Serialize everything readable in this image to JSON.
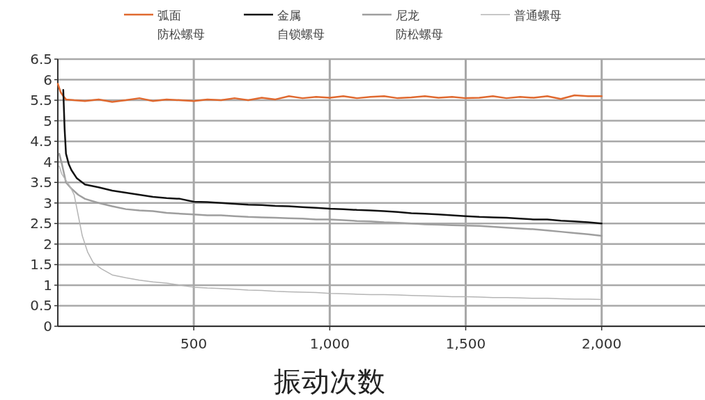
{
  "chart_data": {
    "type": "line",
    "xlabel": "振动次数",
    "xlim": [
      0,
      2380
    ],
    "ylim": [
      0,
      6.5
    ],
    "xticks": [
      {
        "value": 500,
        "label": "500"
      },
      {
        "value": 1000,
        "label": "1,000"
      },
      {
        "value": 1500,
        "label": "1,500"
      },
      {
        "value": 2000,
        "label": "2,000"
      }
    ],
    "yticks": [
      0,
      {
        "value": 0.5,
        "label": "0.5"
      },
      1,
      {
        "value": 1.5,
        "label": "1.5"
      },
      2,
      {
        "value": 2.5,
        "label": "2.5"
      },
      3,
      {
        "value": 3.5,
        "label": "3.5"
      },
      4,
      {
        "value": 4.5,
        "label": "4.5"
      },
      5,
      {
        "value": 5.5,
        "label": "5.5"
      },
      6,
      {
        "value": 6.5,
        "label": "6.5"
      }
    ],
    "grid": true,
    "legend": "top",
    "marker": "none",
    "line_style": "solid",
    "series": [
      {
        "name": "弧面防松螺母",
        "color": "#e0692f",
        "x": [
          0,
          10,
          20,
          30,
          60,
          100,
          150,
          200,
          250,
          300,
          350,
          400,
          450,
          500,
          550,
          600,
          650,
          700,
          750,
          800,
          850,
          900,
          950,
          1000,
          1050,
          1100,
          1150,
          1200,
          1250,
          1300,
          1350,
          1400,
          1450,
          1500,
          1550,
          1600,
          1650,
          1700,
          1750,
          1800,
          1850,
          1900,
          1950,
          2000
        ],
        "values": [
          5.9,
          5.7,
          5.6,
          5.52,
          5.5,
          5.48,
          5.52,
          5.46,
          5.5,
          5.55,
          5.48,
          5.52,
          5.5,
          5.48,
          5.52,
          5.5,
          5.55,
          5.5,
          5.56,
          5.52,
          5.6,
          5.55,
          5.58,
          5.56,
          5.6,
          5.55,
          5.58,
          5.6,
          5.55,
          5.57,
          5.6,
          5.56,
          5.58,
          5.55,
          5.56,
          5.6,
          5.55,
          5.58,
          5.56,
          5.6,
          5.53,
          5.62,
          5.6,
          5.6
        ]
      },
      {
        "name": "金属自锁螺母",
        "color": "#111111",
        "x": [
          20,
          25,
          30,
          40,
          50,
          70,
          100,
          150,
          200,
          250,
          300,
          350,
          400,
          450,
          500,
          550,
          600,
          650,
          700,
          750,
          800,
          850,
          900,
          950,
          1000,
          1050,
          1100,
          1150,
          1200,
          1250,
          1300,
          1350,
          1400,
          1450,
          1500,
          1550,
          1600,
          1650,
          1700,
          1750,
          1800,
          1850,
          1900,
          1950,
          2000
        ],
        "values": [
          5.75,
          4.8,
          4.2,
          3.95,
          3.8,
          3.6,
          3.45,
          3.38,
          3.3,
          3.25,
          3.2,
          3.15,
          3.12,
          3.1,
          3.03,
          3.02,
          3.0,
          2.98,
          2.96,
          2.95,
          2.93,
          2.92,
          2.9,
          2.88,
          2.86,
          2.85,
          2.83,
          2.82,
          2.8,
          2.78,
          2.75,
          2.74,
          2.72,
          2.7,
          2.68,
          2.66,
          2.65,
          2.64,
          2.62,
          2.6,
          2.6,
          2.57,
          2.55,
          2.53,
          2.5
        ]
      },
      {
        "name": "尼龙防松螺母",
        "color": "#9e9e9e",
        "x": [
          5,
          15,
          30,
          50,
          75,
          100,
          150,
          200,
          250,
          300,
          350,
          400,
          450,
          500,
          550,
          600,
          650,
          700,
          750,
          800,
          850,
          900,
          950,
          1000,
          1050,
          1100,
          1150,
          1200,
          1250,
          1300,
          1350,
          1400,
          1450,
          1500,
          1550,
          1600,
          1650,
          1700,
          1750,
          1800,
          1850,
          1900,
          1950,
          2000
        ],
        "values": [
          4.2,
          3.95,
          3.5,
          3.35,
          3.2,
          3.1,
          3.0,
          2.92,
          2.85,
          2.82,
          2.8,
          2.76,
          2.74,
          2.72,
          2.7,
          2.7,
          2.68,
          2.66,
          2.65,
          2.64,
          2.63,
          2.62,
          2.6,
          2.6,
          2.58,
          2.56,
          2.55,
          2.53,
          2.52,
          2.5,
          2.48,
          2.47,
          2.46,
          2.45,
          2.44,
          2.42,
          2.4,
          2.38,
          2.36,
          2.33,
          2.3,
          2.27,
          2.24,
          2.2
        ]
      },
      {
        "name": "普通螺母",
        "color": "#b5b5b5",
        "x": [
          5,
          15,
          30,
          45,
          60,
          75,
          90,
          110,
          130,
          160,
          200,
          250,
          300,
          350,
          400,
          450,
          500,
          550,
          600,
          650,
          700,
          750,
          800,
          850,
          900,
          950,
          1000,
          1050,
          1100,
          1150,
          1200,
          1250,
          1300,
          1350,
          1400,
          1450,
          1500,
          1550,
          1600,
          1650,
          1700,
          1750,
          1800,
          1850,
          1900,
          1950,
          2000
        ],
        "values": [
          3.9,
          3.7,
          3.55,
          3.4,
          3.2,
          2.7,
          2.2,
          1.8,
          1.55,
          1.4,
          1.25,
          1.18,
          1.12,
          1.08,
          1.05,
          1.0,
          0.95,
          0.93,
          0.92,
          0.9,
          0.88,
          0.87,
          0.85,
          0.84,
          0.83,
          0.82,
          0.8,
          0.79,
          0.78,
          0.77,
          0.77,
          0.76,
          0.75,
          0.74,
          0.73,
          0.72,
          0.72,
          0.71,
          0.7,
          0.7,
          0.69,
          0.68,
          0.68,
          0.67,
          0.66,
          0.66,
          0.65
        ]
      }
    ]
  }
}
